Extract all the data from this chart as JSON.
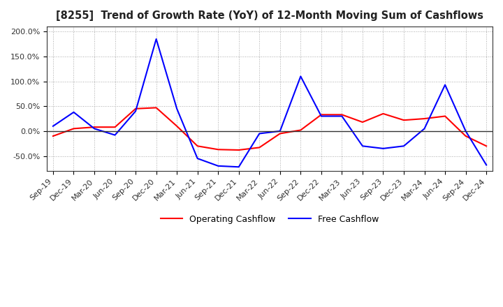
{
  "title": "[8255]  Trend of Growth Rate (YoY) of 12-Month Moving Sum of Cashflows",
  "x_labels": [
    "Sep-19",
    "Dec-19",
    "Mar-20",
    "Jun-20",
    "Sep-20",
    "Dec-20",
    "Mar-21",
    "Jun-21",
    "Sep-21",
    "Dec-21",
    "Mar-22",
    "Jun-22",
    "Sep-22",
    "Dec-22",
    "Mar-23",
    "Jun-23",
    "Sep-23",
    "Dec-23",
    "Mar-24",
    "Jun-24",
    "Sep-24",
    "Dec-24"
  ],
  "operating_cashflow": [
    -10,
    5,
    8,
    8,
    45,
    47,
    10,
    -30,
    -37,
    -38,
    -33,
    -5,
    2,
    33,
    33,
    18,
    35,
    22,
    25,
    30,
    -10,
    -30
  ],
  "free_cashflow": [
    10,
    38,
    5,
    -8,
    40,
    185,
    45,
    -55,
    -70,
    -72,
    -5,
    0,
    110,
    30,
    30,
    -30,
    -35,
    -30,
    5,
    93,
    0,
    -68
  ],
  "operating_color": "#ff0000",
  "free_color": "#0000ff",
  "ylim": [
    -80,
    210
  ],
  "yticks": [
    -50,
    0,
    50,
    100,
    150,
    200
  ],
  "ytick_labels": [
    "-50.0%",
    "0.0%",
    "50.0%",
    "100.0%",
    "150.0%",
    "200.0%"
  ],
  "background_color": "#ffffff",
  "grid_color": "#aaaaaa",
  "legend_labels": [
    "Operating Cashflow",
    "Free Cashflow"
  ]
}
